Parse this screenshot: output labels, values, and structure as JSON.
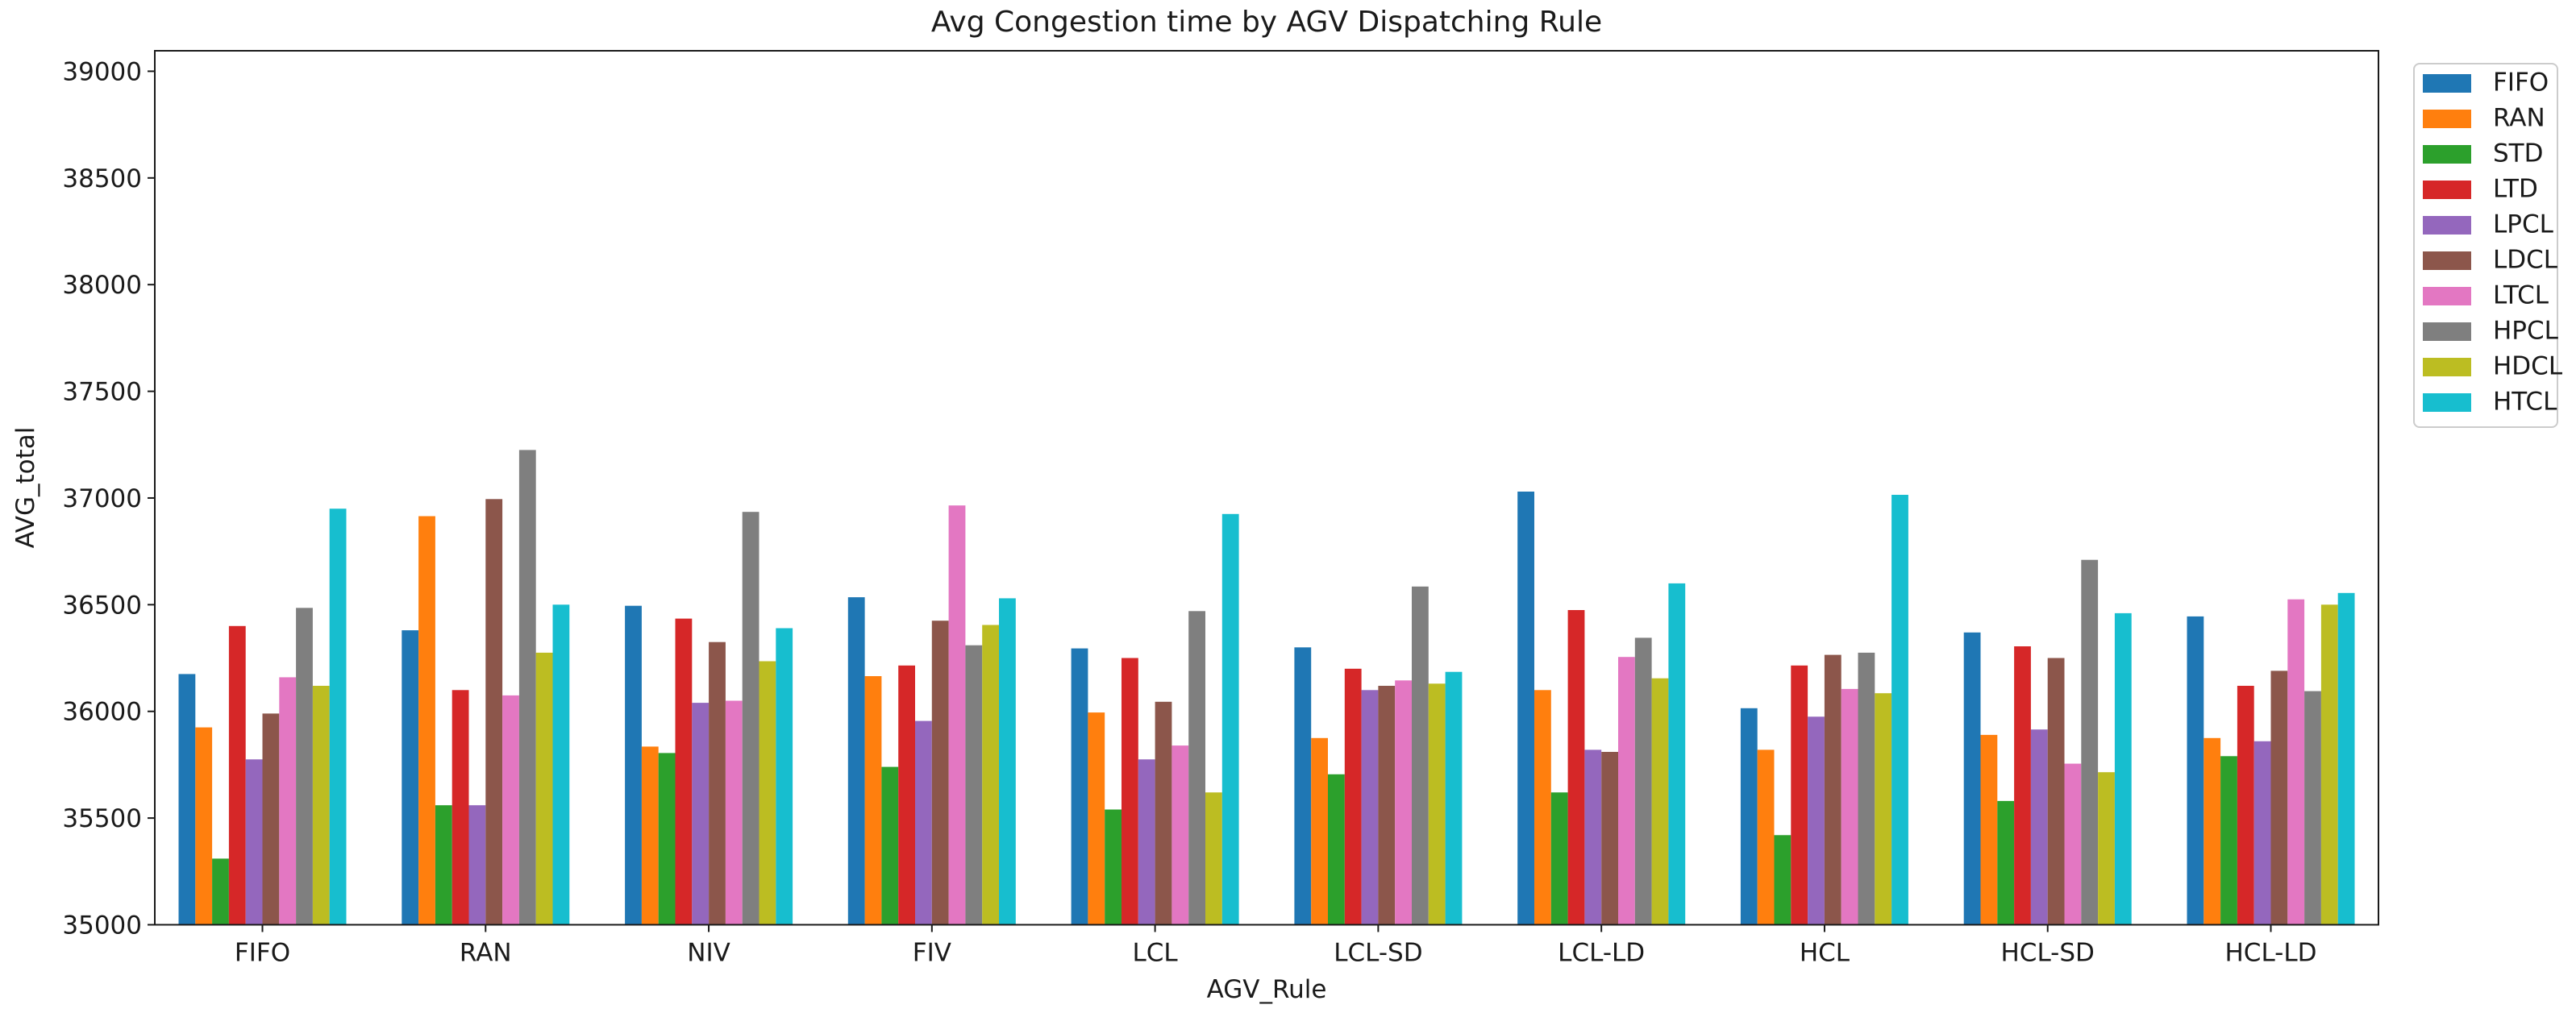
{
  "figure": {
    "title": "Avg Congestion time by AGV Dispatching Rule",
    "xlabel": "AGV_Rule",
    "ylabel": "AVG_total"
  },
  "chart_data": {
    "type": "bar",
    "title": "Avg Congestion time by AGV Dispatching Rule",
    "xlabel": "AGV_Rule",
    "ylabel": "AVG_total",
    "grid": false,
    "legend_position": "outside upper right",
    "ylim": [
      35000,
      39096
    ],
    "yticks": [
      35000,
      35500,
      36000,
      36500,
      37000,
      37500,
      38000,
      38500,
      39000
    ],
    "categories": [
      "FIFO",
      "RAN",
      "NIV",
      "FIV",
      "LCL",
      "LCL-SD",
      "LCL-LD",
      "HCL",
      "HCL-SD",
      "HCL-LD"
    ],
    "series": [
      {
        "name": "FIFO",
        "color": "#1f77b4",
        "values": [
          36175,
          36380,
          36495,
          36535,
          36295,
          36300,
          37030,
          36015,
          36370,
          36445
        ]
      },
      {
        "name": "RAN",
        "color": "#ff7f0e",
        "values": [
          35925,
          36915,
          35835,
          36165,
          35995,
          35875,
          36100,
          35820,
          35890,
          35875
        ]
      },
      {
        "name": "STD",
        "color": "#2ca02c",
        "values": [
          35310,
          35560,
          35805,
          35740,
          35540,
          35705,
          35620,
          35420,
          35580,
          35790
        ]
      },
      {
        "name": "LTD",
        "color": "#d62728",
        "values": [
          36400,
          36100,
          36435,
          36215,
          36250,
          36200,
          36475,
          36215,
          36305,
          36120
        ]
      },
      {
        "name": "LPCL",
        "color": "#9467bd",
        "values": [
          35775,
          35560,
          36040,
          35955,
          35775,
          36100,
          35820,
          35975,
          35915,
          35860
        ]
      },
      {
        "name": "LDCL",
        "color": "#8c564b",
        "values": [
          35990,
          36995,
          36325,
          36425,
          36045,
          36120,
          35810,
          36265,
          36250,
          36190
        ]
      },
      {
        "name": "LTCL",
        "color": "#e377c2",
        "values": [
          36160,
          36075,
          36050,
          36965,
          35840,
          36145,
          36255,
          36105,
          35755,
          36525
        ]
      },
      {
        "name": "HPCL",
        "color": "#7f7f7f",
        "values": [
          36485,
          37225,
          36935,
          36310,
          36470,
          36585,
          36345,
          36275,
          36710,
          36095
        ]
      },
      {
        "name": "HDCL",
        "color": "#bcbd22",
        "values": [
          36120,
          36275,
          36235,
          36405,
          35620,
          36130,
          36155,
          36085,
          35715,
          36500
        ]
      },
      {
        "name": "HTCL",
        "color": "#17becf",
        "values": [
          36950,
          36500,
          36390,
          36530,
          36925,
          36185,
          36600,
          37015,
          36460,
          36555
        ]
      }
    ]
  }
}
